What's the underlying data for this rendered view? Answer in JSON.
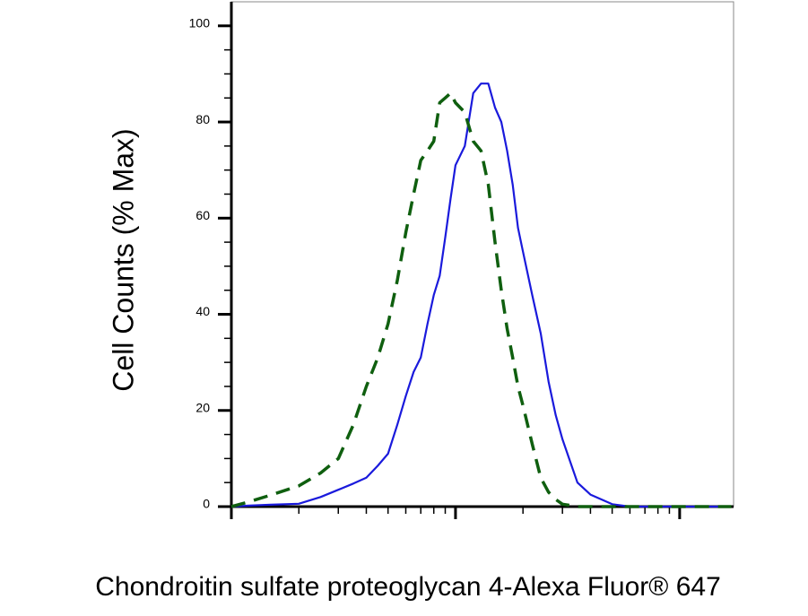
{
  "chart_data": {
    "type": "line",
    "y_label": "Cell Counts (% Max)",
    "x_label": "Chondroitin sulfate proteoglycan 4-Alexa Fluor® 647",
    "x": [
      1,
      1.2,
      1.5,
      2,
      2.5,
      3,
      3.5,
      4,
      4.5,
      5,
      5.5,
      6,
      6.5,
      7,
      7.5,
      8,
      8.5,
      9,
      9.5,
      10,
      11,
      12,
      13,
      14,
      15,
      16,
      17,
      18,
      19,
      20,
      22,
      24,
      26,
      28,
      30,
      35,
      40,
      50,
      60,
      80,
      100,
      170
    ],
    "series": [
      {
        "color": "#1a1adc",
        "linestyle": "solid",
        "values": [
          0,
          0.2,
          0.4,
          0.6,
          2,
          3.5,
          4.8,
          6,
          8.5,
          11,
          17,
          23,
          28,
          31,
          38,
          44,
          48,
          56,
          64,
          71,
          75,
          86,
          88,
          88,
          83,
          80,
          74,
          67,
          58,
          53,
          44,
          36,
          26,
          19,
          14,
          5,
          2.5,
          0.5,
          0,
          0,
          0,
          0
        ]
      },
      {
        "color": "#0f5f0f",
        "linestyle": "dashed",
        "values": [
          0,
          1,
          2.4,
          4.3,
          7,
          10,
          17,
          25,
          31,
          38,
          47,
          57,
          65,
          72,
          74,
          76,
          84,
          85,
          86,
          84,
          82,
          76,
          74,
          67,
          55,
          45,
          37,
          31,
          25,
          21,
          13,
          6,
          3,
          1.5,
          0.5,
          0,
          0,
          0,
          0,
          0,
          0,
          0
        ]
      }
    ],
    "xscale": "log",
    "xlim": [
      1,
      174
    ],
    "xticks": [
      1,
      10,
      100
    ],
    "xtick_labels": false,
    "ylim": [
      0,
      105
    ],
    "yticks": [
      0,
      20,
      40,
      60,
      80,
      100
    ],
    "grid": false
  }
}
